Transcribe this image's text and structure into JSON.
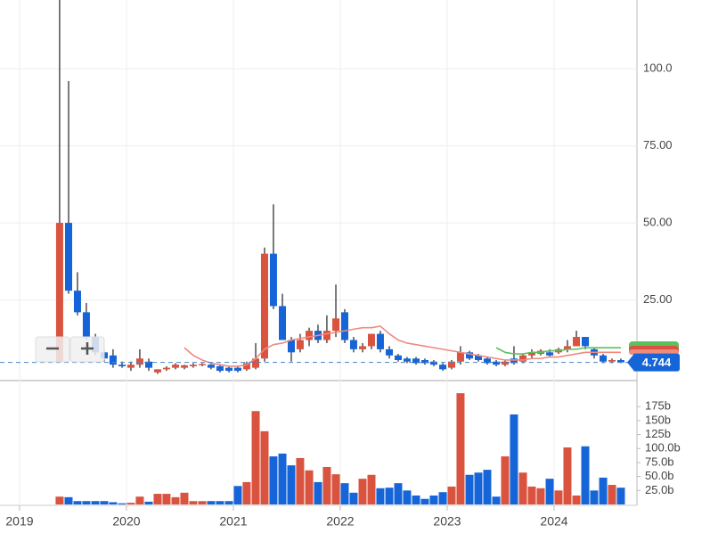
{
  "chart_data": {
    "type": "candlestick",
    "x": [
      2019.333,
      2019.417,
      2019.5,
      2019.583,
      2019.667,
      2019.75,
      2019.833,
      2019.917,
      2020,
      2020.083,
      2020.167,
      2020.25,
      2020.333,
      2020.417,
      2020.5,
      2020.583,
      2020.667,
      2020.75,
      2020.833,
      2020.917,
      2021,
      2021.083,
      2021.167,
      2021.25,
      2021.333,
      2021.417,
      2021.5,
      2021.583,
      2021.667,
      2021.75,
      2021.833,
      2021.917,
      2022,
      2022.083,
      2022.167,
      2022.25,
      2022.333,
      2022.417,
      2022.5,
      2022.583,
      2022.667,
      2022.75,
      2022.833,
      2022.917,
      2023,
      2023.083,
      2023.167,
      2023.25,
      2023.333,
      2023.417,
      2023.5,
      2023.583,
      2023.667,
      2023.75,
      2023.833,
      2023.917,
      2024,
      2024.083,
      2024.167,
      2024.25,
      2024.333,
      2024.417,
      2024.5,
      2024.583
    ],
    "open": [
      5,
      50,
      28,
      21,
      13,
      8,
      7,
      4,
      3,
      4,
      5,
      1.5,
      2.5,
      3,
      3,
      3.5,
      3.8,
      4,
      3.5,
      3,
      3,
      2.5,
      3,
      6,
      40,
      23,
      12,
      9,
      12,
      15,
      12,
      15,
      21,
      12,
      9,
      10,
      14,
      9,
      7,
      6,
      6,
      5.5,
      5,
      4,
      3,
      5,
      8,
      7,
      6,
      5,
      4,
      6,
      5,
      7,
      7.5,
      8,
      8,
      9,
      10,
      13,
      9,
      7,
      5,
      5.5
    ],
    "high": [
      123,
      96,
      34,
      24,
      14,
      9,
      9,
      5,
      5,
      9,
      6,
      2.5,
      3.5,
      4.5,
      4,
      4.5,
      4.5,
      4.5,
      4,
      3.5,
      3.5,
      5,
      11,
      42,
      56,
      27,
      13,
      14,
      16,
      17,
      20,
      30,
      22,
      13,
      11,
      14,
      15,
      10,
      7.5,
      6.5,
      6.5,
      6,
      5.5,
      4.5,
      5.5,
      10,
      8.5,
      7.5,
      6.5,
      5.5,
      5.5,
      10,
      7.5,
      9,
      9,
      9,
      9.5,
      12,
      15,
      13,
      9.5,
      7.5,
      6,
      6
    ],
    "low": [
      5,
      27,
      20,
      12,
      7,
      5,
      3,
      3,
      2,
      3,
      2,
      1,
      2,
      2.5,
      2.5,
      3,
      3.5,
      2.5,
      1.5,
      1.5,
      1.5,
      2,
      2.5,
      5,
      22,
      12,
      5,
      8,
      10,
      11,
      11,
      13,
      11,
      8,
      8,
      9,
      8,
      6,
      5,
      4.5,
      4,
      4,
      3.5,
      2,
      2.5,
      4,
      5.5,
      5,
      4,
      3.5,
      3.5,
      4,
      4.5,
      6,
      7,
      6.5,
      7.5,
      8,
      10,
      9,
      6,
      4.5,
      4.5,
      4.5
    ],
    "close": [
      50,
      28,
      21,
      13,
      8,
      6,
      4,
      3.5,
      4,
      6,
      3,
      2.5,
      3,
      4,
      3.8,
      4,
      4.2,
      3,
      2,
      2,
      2,
      4.5,
      6,
      40,
      23,
      12,
      8,
      12,
      15,
      12,
      15,
      19,
      12,
      9,
      10,
      14,
      9,
      7,
      5.5,
      5,
      4.5,
      4.5,
      4,
      2.5,
      5,
      8,
      6,
      5.5,
      4.5,
      4,
      5,
      4.5,
      7,
      8,
      8.5,
      7,
      9,
      10,
      13,
      10,
      7,
      5,
      5.5,
      4.744
    ],
    "volume": [
      14,
      13,
      6,
      6,
      6,
      6,
      4,
      2,
      3,
      14,
      5,
      19,
      19,
      13,
      21,
      6,
      6,
      6,
      6,
      6,
      33,
      40,
      167,
      131,
      86,
      91,
      70,
      83,
      61,
      40,
      67,
      54,
      38,
      21,
      46,
      53,
      29,
      30,
      38,
      25,
      16,
      10,
      16,
      22,
      32,
      199,
      53,
      57,
      62,
      14,
      86,
      161,
      57,
      32,
      29,
      46,
      25,
      102,
      16,
      104,
      25,
      48,
      35,
      30
    ],
    "up_color": "#d9533f",
    "down_color": "#1565d8",
    "lines": [
      {
        "color": "#ee8a80",
        "x": [
          2020.5,
          2020.583,
          2020.667,
          2020.75,
          2020.833,
          2020.917,
          2021,
          2021.083,
          2021.167,
          2021.25,
          2021.333,
          2021.417,
          2021.5,
          2021.583,
          2021.667,
          2021.75,
          2021.833,
          2021.917,
          2022,
          2022.083,
          2022.167,
          2022.25,
          2022.333,
          2022.417,
          2022.5,
          2022.583,
          2022.667,
          2022.75,
          2022.833,
          2022.917,
          2023,
          2023.083,
          2023.167,
          2023.25,
          2023.333,
          2023.417,
          2023.5,
          2023.583,
          2023.667,
          2023.75,
          2023.833,
          2023.917,
          2024,
          2024.083,
          2024.167,
          2024.25,
          2024.333,
          2024.417,
          2024.5,
          2024.583
        ],
        "values": [
          9.5,
          7,
          5.5,
          4.5,
          4,
          3.5,
          3.5,
          4,
          6,
          9,
          10.5,
          11,
          12,
          12.5,
          13,
          13.5,
          14,
          14.5,
          15,
          15.5,
          16,
          16,
          16.5,
          14,
          12,
          11,
          10.5,
          10,
          9.5,
          9,
          8.5,
          8,
          7.5,
          7,
          6.5,
          6,
          5.5,
          5.5,
          5.5,
          6,
          6,
          6.5,
          6.5,
          7,
          7.5,
          8,
          8,
          8,
          8,
          8
        ]
      },
      {
        "color": "#5cc15c",
        "x": [
          2023.417,
          2023.5,
          2023.583,
          2023.667,
          2023.75,
          2023.833,
          2023.917,
          2024,
          2024.083,
          2024.167,
          2024.25,
          2024.333,
          2024.417,
          2024.5,
          2024.583
        ],
        "values": [
          9.5,
          8,
          7.5,
          7.5,
          8,
          8,
          8.5,
          8.5,
          9,
          9,
          9.5,
          9.5,
          9.5,
          9.5,
          9.5
        ]
      }
    ],
    "last_price": 4.744,
    "xlim": [
      2018.817,
      2024.775
    ],
    "xticks": [
      2019,
      2020,
      2021,
      2022,
      2023,
      2024
    ],
    "ylim": [
      0,
      122.3
    ],
    "yticks": [
      {
        "value": 25,
        "label": "25.00"
      },
      {
        "value": 50,
        "label": "50.00"
      },
      {
        "value": 75,
        "label": "75.00"
      },
      {
        "value": 100,
        "label": "100.0"
      }
    ],
    "vol_ylim": [
      0,
      220
    ],
    "vol_yticks": [
      {
        "value": 25,
        "label": "25.0b"
      },
      {
        "value": 50,
        "label": "50.0b"
      },
      {
        "value": 75,
        "label": "75.0b"
      },
      {
        "value": 100,
        "label": "100.0b"
      },
      {
        "value": 125,
        "label": "125b"
      },
      {
        "value": 150,
        "label": "150b"
      },
      {
        "value": 175,
        "label": "175b"
      }
    ],
    "grid": true
  }
}
